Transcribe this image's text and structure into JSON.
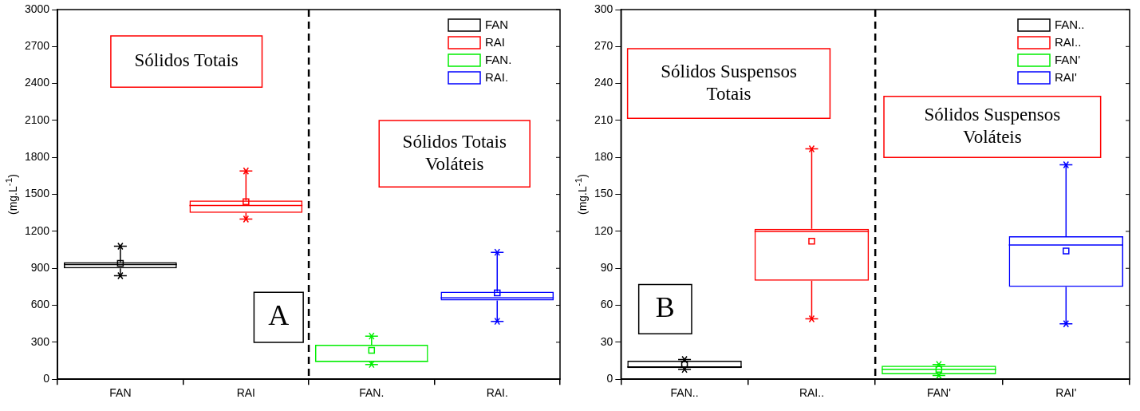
{
  "chart_data": [
    {
      "type": "box",
      "ylabel": "(mg.L$^{-1}$)",
      "categories": [
        "FAN",
        "RAI",
        "FAN.",
        "RAI."
      ],
      "series": [
        {
          "name": "FAN",
          "color": "#000000",
          "boxes": [
            {
              "low": 840,
              "q1": 900,
              "median": 930,
              "q3": 950,
              "high": 1080,
              "mean": 940,
              "outliers": [
                1080,
                840
              ]
            },
            null,
            null,
            null
          ]
        },
        {
          "name": "RAI",
          "color": "#ff0000",
          "boxes": [
            null,
            {
              "low": 1300,
              "q1": 1350,
              "median": 1410,
              "q3": 1450,
              "high": 1690,
              "mean": 1440,
              "outliers": [
                1690,
                1300
              ]
            },
            null,
            null
          ]
        },
        {
          "name": "FAN.",
          "color": "#00ee00",
          "boxes": [
            null,
            null,
            {
              "low": 120,
              "q1": 140,
              "median": 145,
              "q3": 280,
              "high": 350,
              "mean": 235,
              "outliers": [
                350,
                120
              ]
            },
            null
          ]
        },
        {
          "name": "RAI.",
          "color": "#0000ff",
          "boxes": [
            null,
            null,
            null,
            {
              "low": 470,
              "q1": 640,
              "median": 660,
              "q3": 710,
              "high": 1030,
              "mean": 700,
              "outliers": [
                1030,
                470
              ]
            }
          ]
        }
      ],
      "ylim": [
        0,
        3000
      ],
      "yticks": [
        0,
        300,
        600,
        900,
        1200,
        1500,
        1800,
        2100,
        2400,
        2700,
        3000
      ],
      "annotations": [
        "Sólidos Totais",
        "Sólidos Totais Voláteis",
        "A"
      ],
      "legend": "top right",
      "grid": false
    },
    {
      "type": "box",
      "ylabel": "(mg.L$^{-1}$)",
      "categories": [
        "FAN..",
        "RAI..",
        "FAN'",
        "RAI'"
      ],
      "series": [
        {
          "name": "FAN..",
          "color": "#000000",
          "boxes": [
            {
              "low": 8,
              "q1": 9,
              "median": 10,
              "q3": 15,
              "high": 16,
              "mean": 12,
              "outliers": [
                16,
                8
              ]
            },
            null,
            null,
            null
          ]
        },
        {
          "name": "RAI..",
          "color": "#ff0000",
          "boxes": [
            null,
            {
              "low": 49,
              "q1": 80,
              "median": 120,
              "q3": 122,
              "high": 187,
              "mean": 112,
              "outliers": [
                187,
                49
              ]
            },
            null,
            null
          ]
        },
        {
          "name": "FAN'",
          "color": "#00ee00",
          "boxes": [
            null,
            null,
            {
              "low": 3,
              "q1": 4,
              "median": 8,
              "q3": 11,
              "high": 12,
              "mean": 8,
              "outliers": [
                12,
                3
              ]
            },
            null
          ]
        },
        {
          "name": "RAI'",
          "color": "#0000ff",
          "boxes": [
            null,
            null,
            null,
            {
              "low": 45,
              "q1": 75,
              "median": 109,
              "q3": 116,
              "high": 174,
              "mean": 104,
              "outliers": [
                174,
                45
              ]
            }
          ]
        }
      ],
      "ylim": [
        0,
        300
      ],
      "yticks": [
        0,
        30,
        60,
        90,
        120,
        150,
        180,
        210,
        240,
        270,
        300
      ],
      "annotations": [
        "Sólidos Suspensos Totais",
        "Sólidos Suspensos Voláteis",
        "B"
      ],
      "legend": "top right",
      "grid": false
    }
  ]
}
